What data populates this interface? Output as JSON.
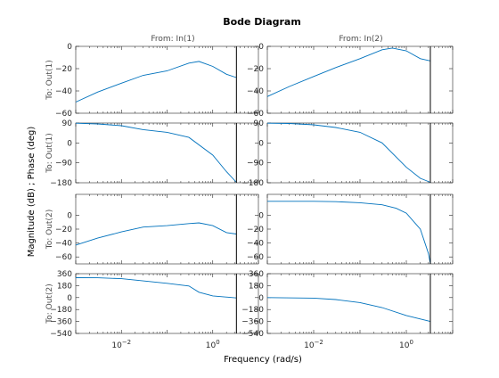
{
  "chart_data": {
    "type": "line",
    "title": "Bode Diagram",
    "xlabel": "Frequency  (rad/s)",
    "ylabel": "Magnitude (dB) ; Phase (deg)",
    "xscale": "log",
    "xlim": [
      0.001,
      10
    ],
    "x_tick_labels": [
      "10^-2",
      "10^0"
    ],
    "columns": [
      "From: In(1)",
      "From: In(2)"
    ],
    "row_labels": [
      "To: Out(1)",
      "To: Out(1)",
      "To: Out(2)",
      "To: Out(2)"
    ],
    "line_color": "#0072bd",
    "vertical_line_x": 3.3,
    "panels": [
      {
        "row": 0,
        "col": 0,
        "kind": "magnitude",
        "ylim": [
          -60,
          0
        ],
        "yticks": [
          0,
          -20,
          -40,
          -60
        ],
        "x": [
          0.001,
          0.003,
          0.01,
          0.03,
          0.1,
          0.3,
          0.5,
          1,
          2,
          3.3
        ],
        "values": [
          -50,
          -41,
          -33,
          -26,
          -22,
          -15,
          -13.5,
          -18,
          -25,
          -28
        ]
      },
      {
        "row": 0,
        "col": 1,
        "kind": "magnitude",
        "ylim": [
          -60,
          0
        ],
        "yticks": [
          0,
          -20,
          -40,
          -60
        ],
        "x": [
          0.001,
          0.003,
          0.01,
          0.03,
          0.1,
          0.3,
          0.5,
          1,
          2,
          3.3
        ],
        "values": [
          -45,
          -36,
          -27,
          -19,
          -11,
          -3,
          -1.5,
          -4,
          -11,
          -13
        ]
      },
      {
        "row": 1,
        "col": 0,
        "kind": "phase",
        "ylim": [
          -180,
          90
        ],
        "yticks": [
          90,
          0,
          -90,
          -180
        ],
        "x": [
          0.001,
          0.003,
          0.01,
          0.03,
          0.1,
          0.3,
          1,
          2,
          3.3
        ],
        "values": [
          89,
          86,
          78,
          60,
          48,
          25,
          -55,
          -130,
          -178
        ]
      },
      {
        "row": 1,
        "col": 1,
        "kind": "phase",
        "ylim": [
          -180,
          90
        ],
        "yticks": [
          90,
          0,
          -90,
          -180
        ],
        "x": [
          0.001,
          0.003,
          0.01,
          0.03,
          0.1,
          0.3,
          1,
          2,
          3.3
        ],
        "values": [
          89,
          88,
          82,
          70,
          48,
          0,
          -110,
          -160,
          -178
        ]
      },
      {
        "row": 2,
        "col": 0,
        "kind": "magnitude",
        "ylim": [
          -70,
          30
        ],
        "yticks": [
          0,
          -20,
          -40,
          -60
        ],
        "x": [
          0.001,
          0.003,
          0.01,
          0.03,
          0.1,
          0.3,
          0.5,
          1,
          2,
          3.3
        ],
        "values": [
          -43,
          -33,
          -24,
          -17,
          -15,
          -12,
          -11,
          -15,
          -25,
          -27
        ]
      },
      {
        "row": 2,
        "col": 1,
        "kind": "magnitude",
        "ylim": [
          -70,
          30
        ],
        "yticks": [
          0,
          -20,
          -40,
          -60
        ],
        "x": [
          0.001,
          0.01,
          0.03,
          0.1,
          0.3,
          0.6,
          1,
          2,
          3,
          3.3
        ],
        "values": [
          20,
          20,
          19.5,
          18,
          15,
          10,
          3,
          -20,
          -55,
          -70
        ]
      },
      {
        "row": 3,
        "col": 0,
        "kind": "phase",
        "ylim": [
          -540,
          360
        ],
        "yticks": [
          360,
          180,
          0,
          -180,
          -360,
          -540
        ],
        "x": [
          0.001,
          0.003,
          0.01,
          0.1,
          0.3,
          0.5,
          1,
          3.3
        ],
        "values": [
          300,
          298,
          285,
          215,
          175,
          80,
          25,
          -5
        ]
      },
      {
        "row": 3,
        "col": 1,
        "kind": "phase",
        "ylim": [
          -540,
          360
        ],
        "yticks": [
          360,
          180,
          0,
          -180,
          -360,
          -540
        ],
        "x": [
          0.001,
          0.01,
          0.03,
          0.1,
          0.3,
          1,
          3.3
        ],
        "values": [
          0,
          -8,
          -30,
          -75,
          -150,
          -270,
          -360
        ]
      }
    ]
  }
}
